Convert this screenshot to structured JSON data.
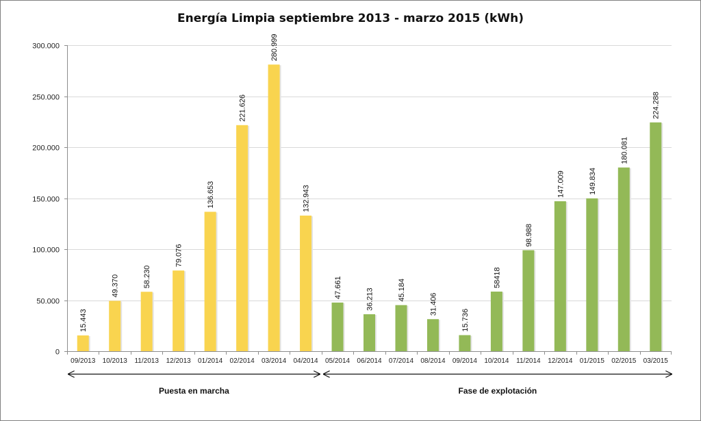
{
  "chart_data": {
    "type": "bar",
    "title": "Energía Limpia septiembre 2013 - marzo 2015  (kWh)",
    "ylim": [
      0,
      300000
    ],
    "yticks": [
      0,
      50000,
      100000,
      150000,
      200000,
      250000,
      300000
    ],
    "ytick_labels": [
      "0",
      "50.000",
      "100.000",
      "150.000",
      "200.000",
      "250.000",
      "300.000"
    ],
    "grid": true,
    "categories": [
      "09/2013",
      "10/2013",
      "11/2013",
      "12/2013",
      "01/2014",
      "02/2014",
      "03/2014",
      "04/2014",
      "05/2014",
      "06/2014",
      "07/2014",
      "08/2014",
      "09/2014",
      "10/2014",
      "11/2014",
      "12/2014",
      "01/2015",
      "02/2015",
      "03/2015"
    ],
    "values": [
      15443,
      49370,
      58230,
      79076,
      136653,
      221626,
      280999,
      132943,
      47661,
      36213,
      45184,
      31406,
      15736,
      58418,
      98988,
      147009,
      149834,
      180081,
      224288
    ],
    "value_labels": [
      "15.443",
      "49.370",
      "58.230",
      "79.076",
      "136.653",
      "221.626",
      "280.999",
      "132.943",
      "47.661",
      "36.213",
      "45.184",
      "31.406",
      "15.736",
      "58418",
      "98.988",
      "147.009",
      "149.834",
      "180.081",
      "224.288"
    ],
    "phases": [
      {
        "name": "Puesta en marcha",
        "start_index": 0,
        "end_index": 7,
        "color": "#f9d44f"
      },
      {
        "name": "Fase de explotación",
        "start_index": 8,
        "end_index": 18,
        "color": "#93b957"
      }
    ]
  }
}
